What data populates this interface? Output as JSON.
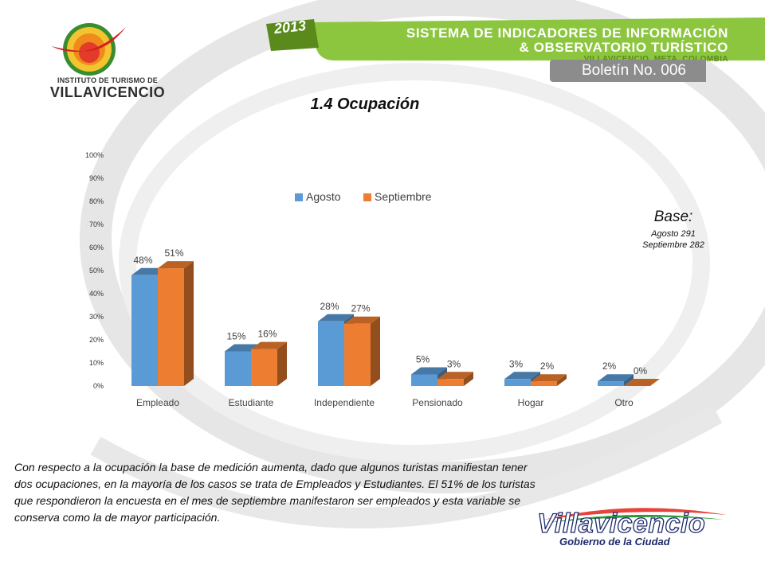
{
  "header": {
    "org_line1": "INSTITUTO DE TURISMO DE",
    "org_line2": "VILLAVICENCIO",
    "year": "2013",
    "system_line1": "SISTEMA DE INDICADORES DE INFORMACIÓN",
    "system_line2": "& OBSERVATORIO TURÍSTICO",
    "location": "VILLAVICENCIO, META, COLOMBIA",
    "bulletin": "Boletín No. 006"
  },
  "page_title": "1.4 Ocupación",
  "base": {
    "heading": "Base:",
    "line1": "Agosto  291",
    "line2": "Septiembre 282"
  },
  "body_text": "Con respecto a la ocupación la base de medición aumenta, dado que algunos turistas manifiestan tener dos ocupaciones, en la mayoría de los casos se trata de Empleados y Estudiantes. El 51% de los turistas que respondieron la encuesta en el mes de septiembre manifestaron ser empleados y esta variable se conserva como la de mayor participación.",
  "footer_logo": {
    "word": "Villavicencio",
    "subtitle": "Gobierno de la Ciudad"
  },
  "colors": {
    "agosto": "#5b9bd5",
    "septiembre": "#ed7d31",
    "banner_green": "#8cc63f",
    "banner_dark_green": "#5a8a1c"
  },
  "chart_data": {
    "type": "bar",
    "title": "",
    "xlabel": "",
    "ylabel": "",
    "categories": [
      "Empleado",
      "Estudiante",
      "Independiente",
      "Pensionado",
      "Hogar",
      "Otro"
    ],
    "series": [
      {
        "name": "Agosto",
        "values": [
          48,
          15,
          28,
          5,
          3,
          2
        ],
        "labels": [
          "48%",
          "15%",
          "28%",
          "5%",
          "3%",
          "2%"
        ]
      },
      {
        "name": "Septiembre",
        "values": [
          51,
          16,
          27,
          3,
          2,
          0
        ],
        "labels": [
          "51%",
          "16%",
          "27%",
          "3%",
          "2%",
          "0%"
        ]
      }
    ],
    "ylim": [
      0,
      100
    ],
    "yticks": [
      "0%",
      "10%",
      "20%",
      "30%",
      "40%",
      "50%",
      "60%",
      "70%",
      "80%",
      "90%",
      "100%"
    ],
    "legend_position": "top-center",
    "grid": false,
    "style": "3d-columns"
  }
}
